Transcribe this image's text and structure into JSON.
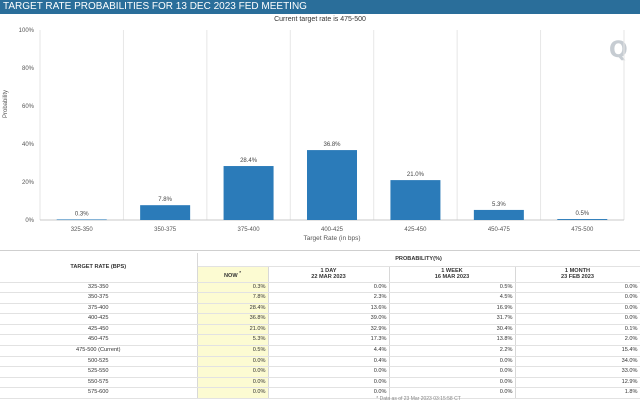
{
  "header": {
    "title": "TARGET RATE PROBABILITIES FOR 13 DEC 2023 FED MEETING"
  },
  "subtitle": "Current target rate is 475-500",
  "colors": {
    "bar": "#2b7bb9",
    "header": "#2a6e9a",
    "now_column": "#fcfbd2"
  },
  "chart_data": {
    "type": "bar",
    "categories": [
      "325-350",
      "350-375",
      "375-400",
      "400-425",
      "425-450",
      "450-475",
      "475-500"
    ],
    "values": [
      0.3,
      7.8,
      28.4,
      36.8,
      21.0,
      5.3,
      0.5
    ],
    "data_labels": [
      "0.3%",
      "7.8%",
      "28.4%",
      "36.8%",
      "21.0%",
      "5.3%",
      "0.5%"
    ],
    "xlabel": "Target Rate (in bps)",
    "ylabel": "Probability",
    "ylim": [
      0,
      100
    ],
    "yticks": [
      "0%",
      "20%",
      "40%",
      "60%",
      "80%",
      "100%"
    ],
    "grid": "vertical"
  },
  "table": {
    "col_rate": "TARGET RATE (BPS)",
    "group_header": "PROBABILITY(%)",
    "columns": [
      {
        "label": "NOW",
        "marker": "*",
        "date": ""
      },
      {
        "label": "1 DAY",
        "date": "22 MAR 2023"
      },
      {
        "label": "1 WEEK",
        "date": "16 MAR 2023"
      },
      {
        "label": "1 MONTH",
        "date": "23 FEB 2023"
      }
    ],
    "rows": [
      {
        "rate": "325-350",
        "now": "0.3%",
        "d1": "0.0%",
        "w1": "0.5%",
        "m1": "0.0%"
      },
      {
        "rate": "350-375",
        "now": "7.8%",
        "d1": "2.3%",
        "w1": "4.5%",
        "m1": "0.0%"
      },
      {
        "rate": "375-400",
        "now": "28.4%",
        "d1": "13.6%",
        "w1": "16.9%",
        "m1": "0.0%"
      },
      {
        "rate": "400-425",
        "now": "36.8%",
        "d1": "39.0%",
        "w1": "31.7%",
        "m1": "0.0%"
      },
      {
        "rate": "425-450",
        "now": "21.0%",
        "d1": "32.9%",
        "w1": "30.4%",
        "m1": "0.1%"
      },
      {
        "rate": "450-475",
        "now": "5.3%",
        "d1": "17.3%",
        "w1": "13.8%",
        "m1": "2.0%"
      },
      {
        "rate": "475-500 (Current)",
        "now": "0.5%",
        "d1": "4.4%",
        "w1": "2.2%",
        "m1": "15.4%"
      },
      {
        "rate": "500-525",
        "now": "0.0%",
        "d1": "0.4%",
        "w1": "0.0%",
        "m1": "34.0%"
      },
      {
        "rate": "525-550",
        "now": "0.0%",
        "d1": "0.0%",
        "w1": "0.0%",
        "m1": "33.0%"
      },
      {
        "rate": "550-575",
        "now": "0.0%",
        "d1": "0.0%",
        "w1": "0.0%",
        "m1": "12.9%"
      },
      {
        "rate": "575-600",
        "now": "0.0%",
        "d1": "0.0%",
        "w1": "0.0%",
        "m1": "1.8%"
      }
    ],
    "footnote": "* Data as of 23 Mar 2023 03:15:58 CT"
  }
}
